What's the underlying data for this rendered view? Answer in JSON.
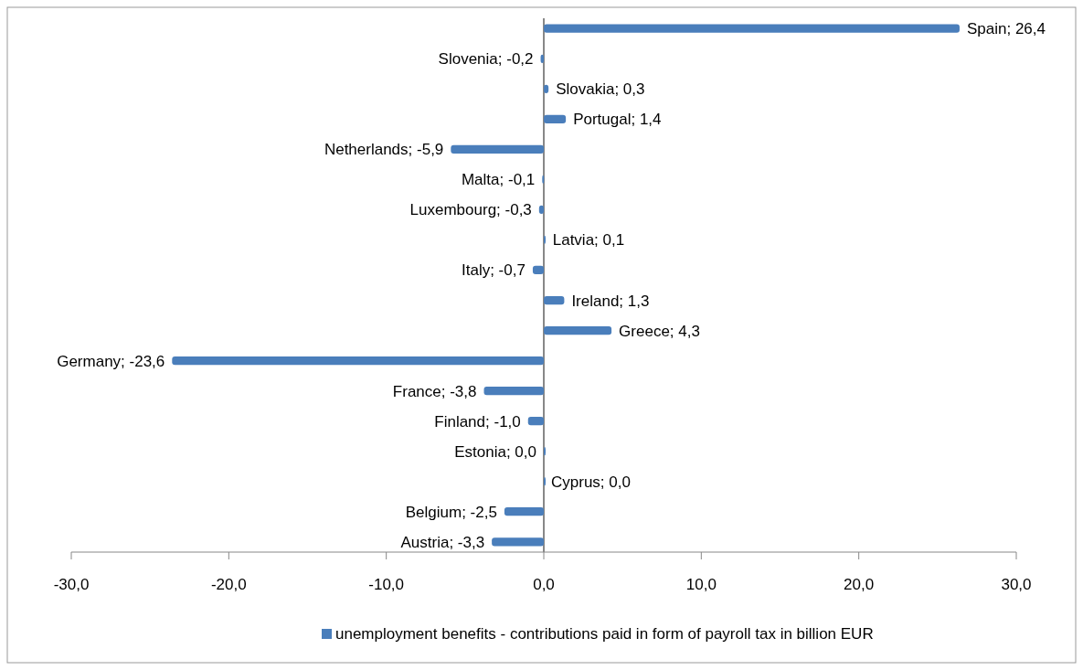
{
  "chart_data": {
    "type": "bar",
    "orientation": "horizontal",
    "categories": [
      null,
      null,
      null,
      null,
      null,
      null,
      null,
      null,
      null,
      null,
      null,
      null,
      null,
      null,
      null,
      null,
      null,
      null
    ],
    "series": [
      {
        "name": "unemployment benefits - contributions paid in form of payroll tax in billion EUR",
        "color": "#4a7ebb",
        "values": [
          26.4,
          -0.2,
          0.3,
          1.4,
          -5.9,
          -0.1,
          -0.3,
          0.1,
          -0.7,
          1.3,
          4.3,
          -23.6,
          -3.8,
          -1.0,
          0.0,
          0.0,
          -2.5,
          -3.3
        ],
        "value_labels": [
          "Spain; 26,4",
          "Slovenia; -0,2",
          "Slovakia; 0,3",
          "Portugal; 1,4",
          "Netherlands; -5,9",
          "Malta; -0,1",
          "Luxembourg; -0,3",
          "Latvia; 0,1",
          "Italy; -0,7",
          "Ireland; 1,3",
          "Greece; 4,3",
          "Germany; -23,6",
          "France; -3,8",
          "Finland; -1,0",
          "Estonia; 0,0",
          "Cyprus; 0,0",
          "Belgium; -2,5",
          "Austria; -3,3"
        ]
      }
    ],
    "xlim": [
      -30,
      30
    ],
    "xticks": [
      {
        "value": -30,
        "label": "-30,0"
      },
      {
        "value": -20,
        "label": "-20,0"
      },
      {
        "value": -10,
        "label": "-10,0"
      },
      {
        "value": 0,
        "label": "0,0"
      },
      {
        "value": 10,
        "label": "10,0"
      },
      {
        "value": 20,
        "label": "20,0"
      },
      {
        "value": 30,
        "label": "30,0"
      }
    ],
    "tick_labels": "x",
    "legend": "bottom"
  }
}
